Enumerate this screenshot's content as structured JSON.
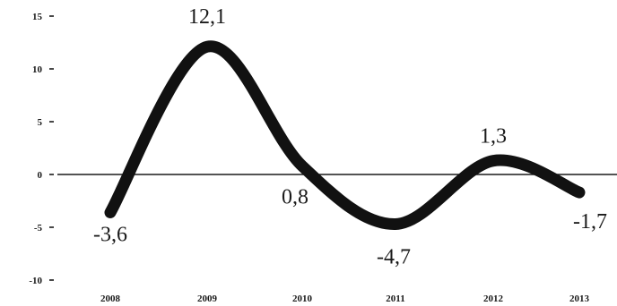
{
  "chart_data": {
    "type": "line",
    "categories": [
      "2008",
      "2009",
      "2010",
      "2011",
      "2012",
      "2013"
    ],
    "series": [
      {
        "values": [
          -3.6,
          12.1,
          0.8,
          -4.7,
          1.3,
          -1.7
        ],
        "labels": [
          "-3,6",
          "12,1",
          "0,8",
          "-4,7",
          "1,3",
          "-1,7"
        ]
      }
    ],
    "yticks": [
      {
        "value": 15,
        "label": "15"
      },
      {
        "value": 10,
        "label": "10"
      },
      {
        "value": 5,
        "label": "5"
      },
      {
        "value": 0,
        "label": "0"
      },
      {
        "value": -5,
        "label": "-5"
      },
      {
        "value": -10,
        "label": "-10"
      }
    ],
    "ylim": [
      -10,
      15
    ],
    "title": "",
    "xlabel": "",
    "ylabel": "",
    "grid": false,
    "zero_line": true,
    "line_color": "#111111"
  }
}
